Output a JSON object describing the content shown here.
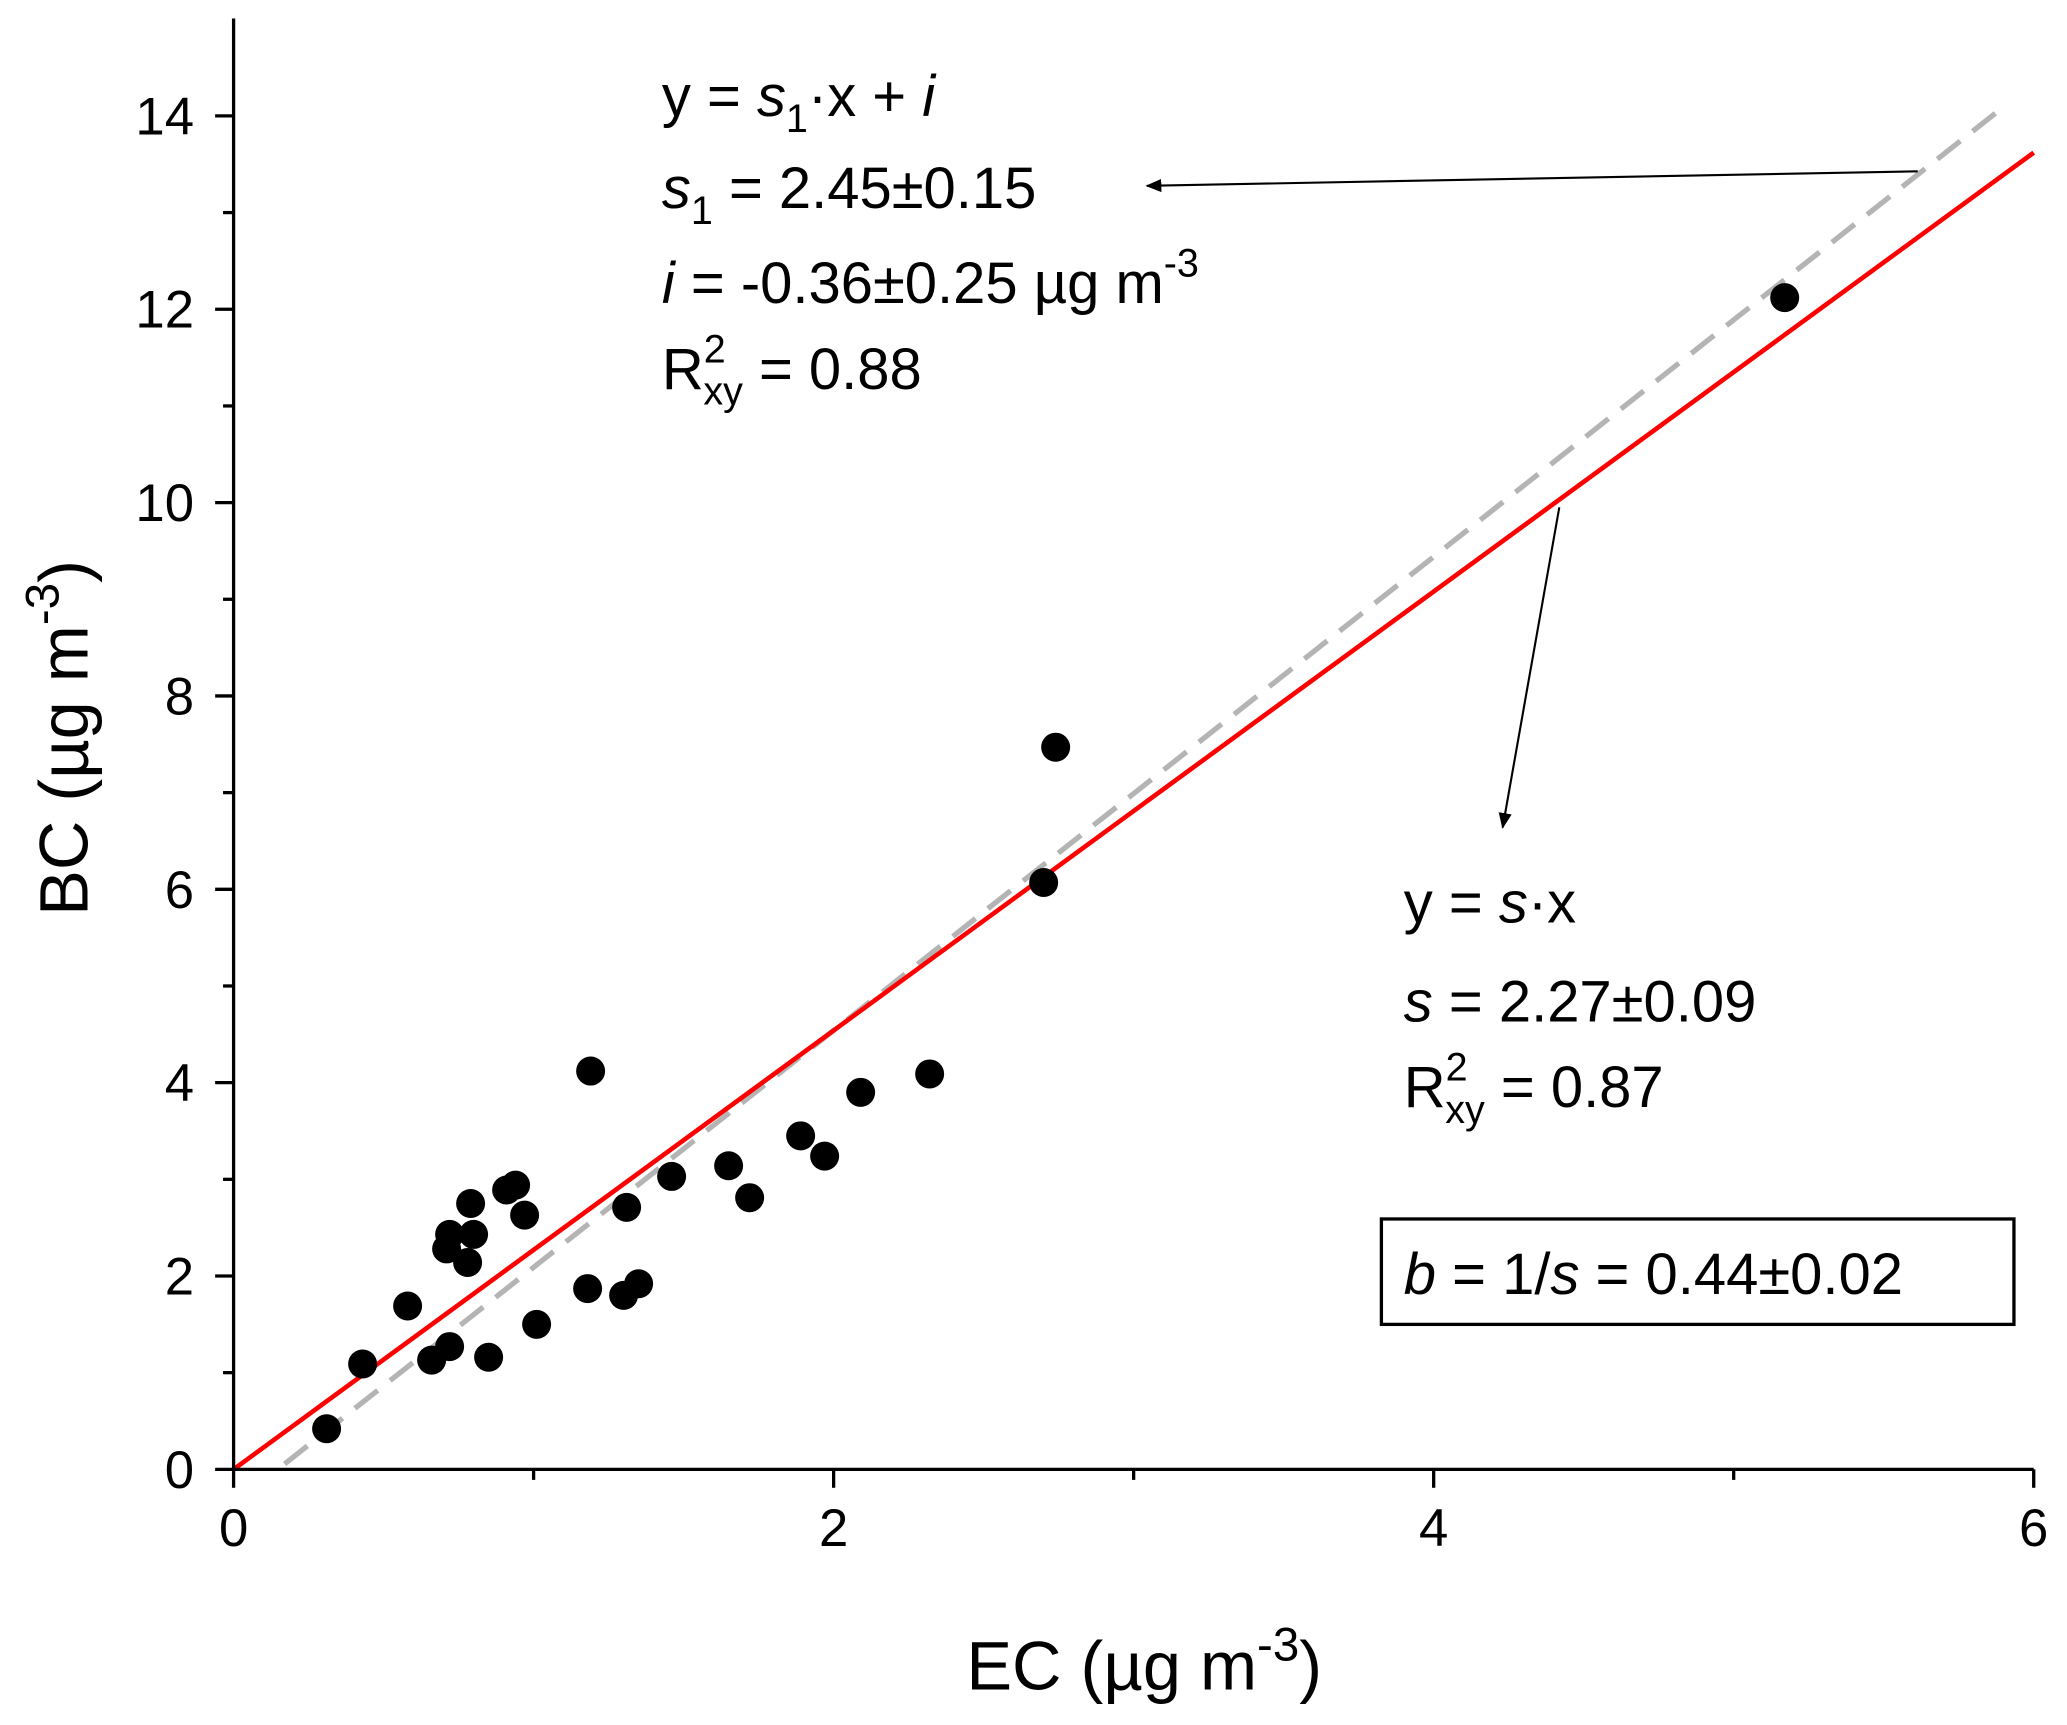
{
  "chart_data": {
    "type": "scatter",
    "xlabel": {
      "main": "EC (µg m",
      "sup": "-3",
      "end": ")"
    },
    "ylabel": {
      "main": "BC (µg m",
      "sup": "-3",
      "end": ")"
    },
    "xlim": [
      0,
      6
    ],
    "ylim": [
      0,
      15
    ],
    "x_ticks": [
      0,
      2,
      4,
      6
    ],
    "x_minor_ticks": [
      1,
      3,
      5
    ],
    "y_ticks": [
      0,
      2,
      4,
      6,
      8,
      10,
      12,
      14
    ],
    "y_minor_ticks": [
      1,
      3,
      5,
      7,
      9,
      11,
      13
    ],
    "grid": false,
    "points": [
      [
        0.31,
        0.42
      ],
      [
        0.43,
        1.09
      ],
      [
        0.58,
        1.69
      ],
      [
        0.66,
        1.13
      ],
      [
        0.72,
        1.27
      ],
      [
        0.72,
        2.43
      ],
      [
        0.71,
        2.28
      ],
      [
        0.78,
        2.14
      ],
      [
        0.79,
        2.75
      ],
      [
        0.8,
        2.43
      ],
      [
        0.85,
        1.16
      ],
      [
        0.91,
        2.89
      ],
      [
        0.94,
        2.94
      ],
      [
        0.97,
        2.63
      ],
      [
        1.01,
        1.5
      ],
      [
        1.19,
        4.12
      ],
      [
        1.18,
        1.87
      ],
      [
        1.31,
        2.71
      ],
      [
        1.3,
        1.8
      ],
      [
        1.35,
        1.92
      ],
      [
        1.46,
        3.03
      ],
      [
        1.65,
        3.14
      ],
      [
        1.72,
        2.81
      ],
      [
        1.89,
        3.45
      ],
      [
        1.97,
        3.24
      ],
      [
        2.09,
        3.9
      ],
      [
        2.32,
        4.09
      ],
      [
        2.7,
        6.07
      ],
      [
        2.74,
        7.47
      ],
      [
        5.17,
        12.12
      ]
    ],
    "fits": [
      {
        "name": "y = s·x",
        "slope": 2.27,
        "intercept": 0,
        "x_range": [
          0,
          6
        ],
        "color": "#ff0000",
        "style": "solid"
      },
      {
        "name": "y = s1·x + i",
        "slope": 2.45,
        "intercept": -0.36,
        "x_range": [
          0.17,
          5.91
        ],
        "color": "#b4b4b4",
        "style": "dashed"
      }
    ],
    "marker_color": "#000000",
    "annotations": [
      {
        "lines": [
          [
            {
              "t": "y = "
            },
            {
              "t": "s",
              "i": 1
            },
            {
              "t": "1",
              "sub": 1
            },
            {
              "t": "·x + "
            },
            {
              "t": "i",
              "i": 1
            }
          ],
          [
            {
              "t": "s",
              "i": 1
            },
            {
              "t": "1",
              "sub": 1
            },
            {
              "t": " = 2.45±0.15"
            }
          ],
          [
            {
              "t": "i",
              "i": 1
            },
            {
              "t": " = -0.36±0.25 µg m"
            },
            {
              "t": "-3",
              "sup": 1
            }
          ],
          [
            {
              "t": "R"
            },
            {
              "t": "2",
              "sup": 1
            },
            {
              "t": "xy",
              "sub": 1,
              "back": 1
            },
            {
              "t": " = 0.88"
            }
          ]
        ]
      },
      {
        "lines": [
          [
            {
              "t": "y = "
            },
            {
              "t": "s",
              "i": 1
            },
            {
              "t": "·x"
            }
          ],
          [
            {
              "t": "s",
              "i": 1
            },
            {
              "t": " = 2.27±0.09"
            }
          ],
          [
            {
              "t": "R"
            },
            {
              "t": "2",
              "sup": 1
            },
            {
              "t": "xy",
              "sub": 1,
              "back": 1
            },
            {
              "t": " = 0.87"
            }
          ]
        ]
      },
      {
        "boxed": true,
        "lines": [
          [
            {
              "t": "b",
              "i": 1
            },
            {
              "t": " = 1/"
            },
            {
              "t": "s",
              "i": 1
            },
            {
              "t": " = 0.44±0.02"
            }
          ]
        ]
      }
    ]
  }
}
